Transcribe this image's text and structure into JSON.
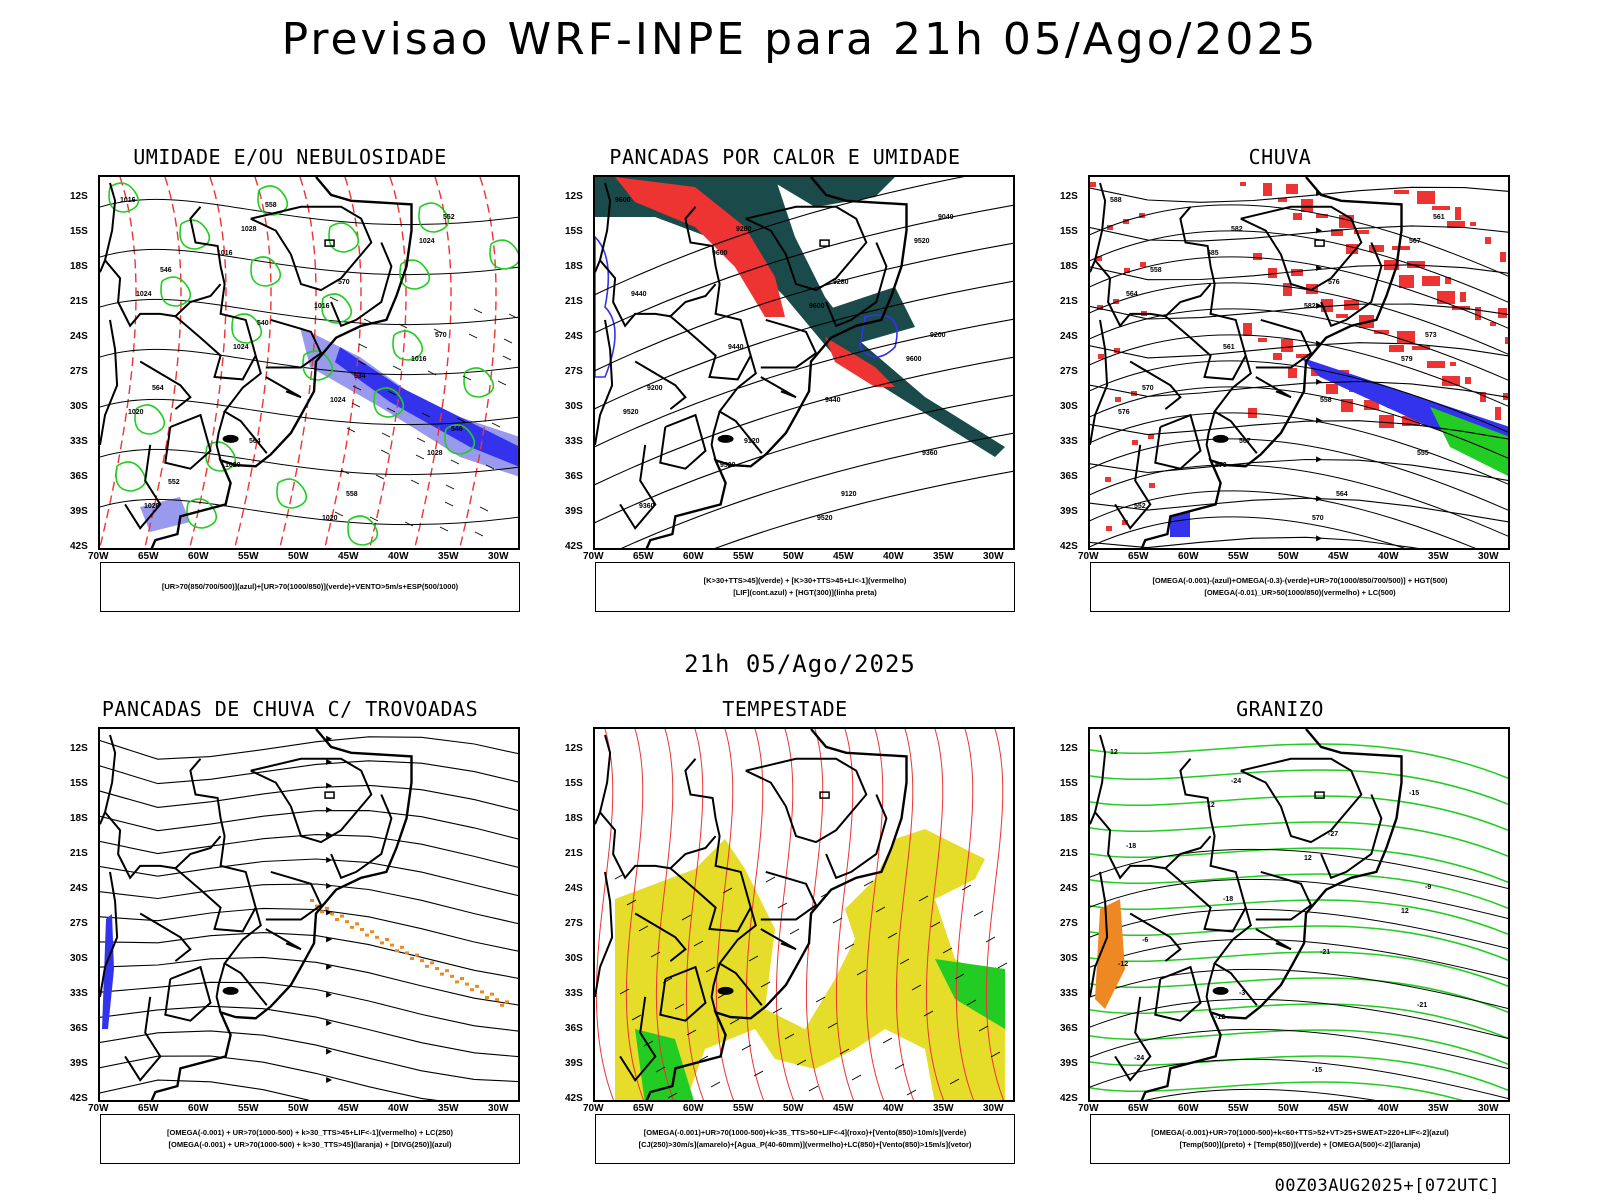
{
  "title": "Previsao WRF-INPE  para 21h 05/Ago/2025",
  "mid_title": "21h 05/Ago/2025",
  "footer": "00Z03AUG2025+[072UTC]",
  "lat_ticks": [
    "12S",
    "15S",
    "18S",
    "21S",
    "24S",
    "27S",
    "30S",
    "33S",
    "36S",
    "39S",
    "42S"
  ],
  "lon_ticks": [
    "70W",
    "65W",
    "60W",
    "55W",
    "50W",
    "45W",
    "40W",
    "35W",
    "30W"
  ],
  "panels": [
    {
      "title": "UMIDADE E/OU NEBULOSIDADE",
      "legend": [
        "[UR>70(850/700/500)](azul)+[UR>70(1000/850)](verde)+VENTO>5m/s+ESP(500/1000)"
      ],
      "contour_labels": [
        "1016",
        "1016",
        "1016",
        "1016",
        "1020",
        "1020",
        "1020",
        "1024",
        "1024",
        "1024",
        "1024",
        "1028",
        "1028",
        "1028",
        "570",
        "570",
        "564",
        "564",
        "558",
        "552",
        "546",
        "540",
        "534",
        "546",
        "552",
        "558"
      ]
    },
    {
      "title": "PANCADAS POR CALOR E UMIDADE",
      "legend": [
        "[K>30+TTS>45](verde) + [K>30+TTS>45+LI<-1](vermelho)",
        "[LIF](cont.azul) + [HGT(300)](linha preta)"
      ],
      "contour_labels": [
        "9600",
        "9600",
        "9600",
        "9600",
        "9520",
        "9520",
        "9520",
        "9520",
        "9440",
        "9440",
        "9440",
        "9360",
        "9360",
        "9280",
        "9280",
        "9200",
        "9200",
        "9120",
        "9120",
        "9040"
      ]
    },
    {
      "title": "CHUVA",
      "legend": [
        "[OMEGA(-0.001)-(azul)+OMEGA(-0.3)-(verde)+UR>70(1000/850/700/500)] + HGT(500)",
        "[OMEGA(-0.01)_UR>50(1000/850)(vermelho) + LC(500)"
      ],
      "contour_labels": [
        "588",
        "585",
        "582",
        "579",
        "576",
        "573",
        "570",
        "567",
        "564",
        "561",
        "558",
        "555",
        "552",
        "582",
        "576",
        "573",
        "570",
        "567",
        "564",
        "561",
        "558"
      ]
    },
    {
      "title": "PANCADAS DE CHUVA C/ TROVOADAS",
      "legend": [
        "[OMEGA(-0.001) + UR>70(1000-500) + k>30_TTS>45+LIF<-1](vermelho) + LC(250)",
        "[OMEGA(-0.001) + UR>70(1000-500) + k>30_TTS>45](laranja) + [DIVG(250)](azul)"
      ],
      "contour_labels": []
    },
    {
      "title": "TEMPESTADE",
      "legend": [
        "[OMEGA(-0.001)+UR>70(1000-500)+k>35_TTS>50+LIF<-4](roxo)+[Vento(850)>10m/s](verde)",
        "[CJ(250)>30m/s](amarelo)+[Agua_P(40-60mm)](vermelho)+LC(850)+[Vento(850)>15m/s](vetor)"
      ],
      "contour_labels": []
    },
    {
      "title": "GRANIZO",
      "legend": [
        "[OMEGA(-0.001)+UR>70(1000-500)+k<60+TTS>52+VT>25+SWEAT>220+LIF<-2](azul)",
        "[Temp(500)](preto) + [Temp(850)](verde) + [OMEGA(500)<-2](laranja)"
      ],
      "contour_labels": [
        "12",
        "12",
        "12",
        "12",
        "-12",
        "-12",
        "-15",
        "-15",
        "-18",
        "-18",
        "-21",
        "-21",
        "-24",
        "-24",
        "-27",
        "-9",
        "-6",
        "-3"
      ]
    }
  ],
  "colors": {
    "blue": "#3333ee",
    "green": "#22cc22",
    "red": "#ee3333",
    "darkteal": "#1a4a4a",
    "orange": "#ee8822",
    "yellow": "#e6dc2a",
    "lavender": "#9999ee"
  }
}
